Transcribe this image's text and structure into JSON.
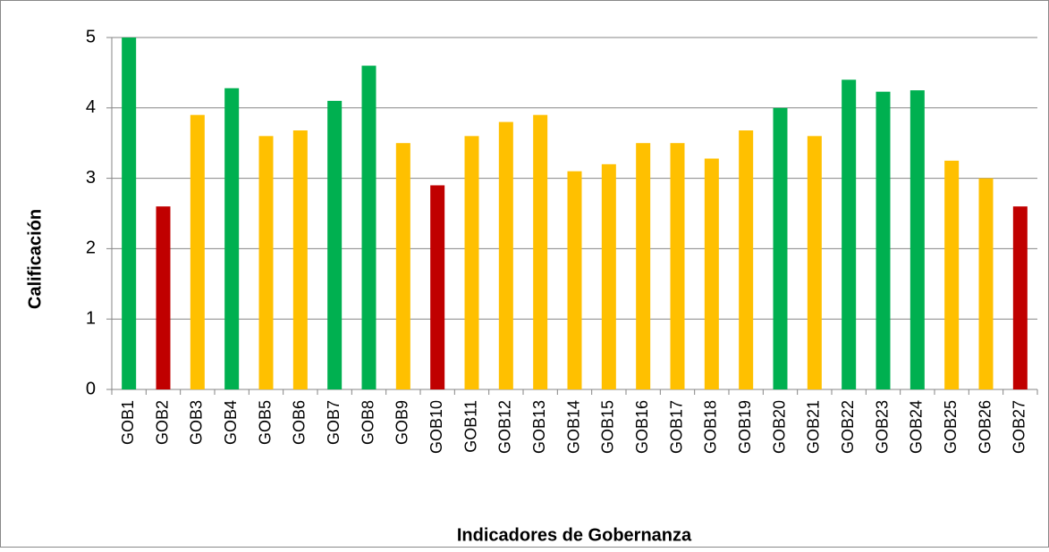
{
  "chart_data": {
    "type": "bar",
    "x_label": "Indicadores de Gobernanza",
    "y_label": "Calificación",
    "categories": [
      "GOB1",
      "GOB2",
      "GOB3",
      "GOB4",
      "GOB5",
      "GOB6",
      "GOB7",
      "GOB8",
      "GOB9",
      "GOB10",
      "GOB11",
      "GOB12",
      "GOB13",
      "GOB14",
      "GOB15",
      "GOB16",
      "GOB17",
      "GOB18",
      "GOB19",
      "GOB20",
      "GOB21",
      "GOB22",
      "GOB23",
      "GOB24",
      "GOB25",
      "GOB26",
      "GOB27"
    ],
    "values": [
      5,
      2.6,
      3.9,
      4.28,
      3.6,
      3.68,
      4.1,
      4.6,
      3.5,
      2.9,
      3.6,
      3.8,
      3.9,
      3.1,
      3.2,
      3.5,
      3.5,
      3.28,
      3.68,
      4.0,
      3.6,
      4.4,
      4.23,
      4.25,
      3.25,
      3.0,
      2.6
    ],
    "colors": [
      "#00b050",
      "#c00000",
      "#ffc000",
      "#00b050",
      "#ffc000",
      "#ffc000",
      "#00b050",
      "#00b050",
      "#ffc000",
      "#c00000",
      "#ffc000",
      "#ffc000",
      "#ffc000",
      "#ffc000",
      "#ffc000",
      "#ffc000",
      "#ffc000",
      "#ffc000",
      "#ffc000",
      "#00b050",
      "#ffc000",
      "#00b050",
      "#00b050",
      "#00b050",
      "#ffc000",
      "#ffc000",
      "#c00000"
    ],
    "ylim": [
      0,
      5
    ],
    "yticks": [
      0,
      1,
      2,
      3,
      4,
      5
    ],
    "grid": true
  }
}
